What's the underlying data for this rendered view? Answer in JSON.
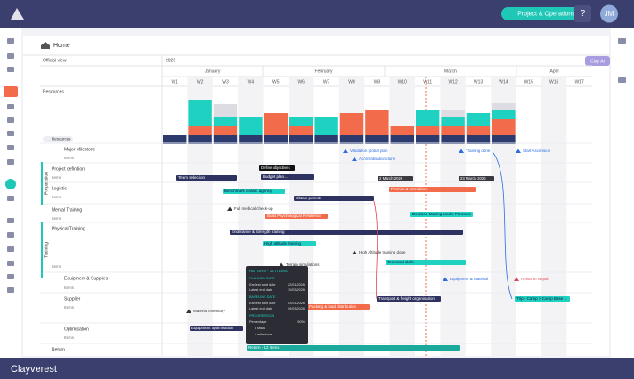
{
  "topbar": {
    "workspace": "Project & Operations",
    "help": "?",
    "avatar": "JM"
  },
  "breadcrumb": "Home",
  "toolbar": {
    "view": "Official view",
    "year": "2026",
    "filter": "Resources",
    "clay_ai": "Clay AI"
  },
  "months": [
    "January",
    "February",
    "March",
    "April"
  ],
  "weeks": [
    "W1",
    "W2",
    "W3",
    "W4",
    "W5",
    "W6",
    "W7",
    "W8",
    "W9",
    "W10",
    "W11",
    "W12",
    "W13",
    "W14",
    "W15",
    "W16",
    "W17"
  ],
  "resources_label": "Resources",
  "groups": [
    "Preparation",
    "Training"
  ],
  "rows": [
    {
      "label": "Major Milestone",
      "items": "Items"
    },
    {
      "label": "Project definition",
      "items": "Items"
    },
    {
      "label": "Logistic",
      "items": "Items"
    },
    {
      "label": "Mental Training",
      "items": "Items"
    },
    {
      "label": "Physical Training",
      "items": "Items"
    },
    {
      "label": "Equipment & Supplies",
      "items": "Items"
    },
    {
      "label": "Supplier",
      "items": "Items"
    },
    {
      "label": "Optimisation",
      "items": "Items"
    },
    {
      "label": "Return"
    }
  ],
  "bars": [
    "Team selection",
    "Budget plan...",
    "Benchmark classic agency",
    "Obtain permits",
    "Permits & formalities",
    "Build Psychological Resilience",
    "Decision-Making Under Pressure",
    "Endurance & strength training",
    "High altitude training",
    "Technical skills",
    "Transport & freight organisation",
    "Packing & load distribution",
    "Equipment optimisation",
    "Return - 12 items",
    "Trip - Camp > Camp Base 1"
  ],
  "tags": [
    "Define objectives",
    "2 March 2026",
    "23 March 2026"
  ],
  "milestones": [
    "Validation global plan",
    "Acclimatisation done",
    "Training done",
    "Start Ascension",
    "Full medical check-up",
    "High Altitude training done",
    "Terrain simulations",
    "Equipment & Material",
    "Arrival in Nepal",
    "Material Inventory"
  ],
  "tooltip": {
    "title": "RETURN - 12 ITEMS",
    "planned": "PLANNED DATE",
    "baseline": "BASELINE DATE",
    "progression": "PROGRESSION",
    "planned_rows": [
      [
        "Earliest start date",
        "22/01/2026"
      ],
      [
        "Latest end date",
        "10/03/2026"
      ]
    ],
    "baseline_rows": [
      [
        "Earliest start date",
        "02/01/2026"
      ],
      [
        "Latest end date",
        "09/03/2026"
      ]
    ],
    "percentage": [
      "Percentage",
      "50%"
    ],
    "tasks": "8 tasks",
    "milestone": "4 milestone"
  },
  "footer": "Clayverest"
}
